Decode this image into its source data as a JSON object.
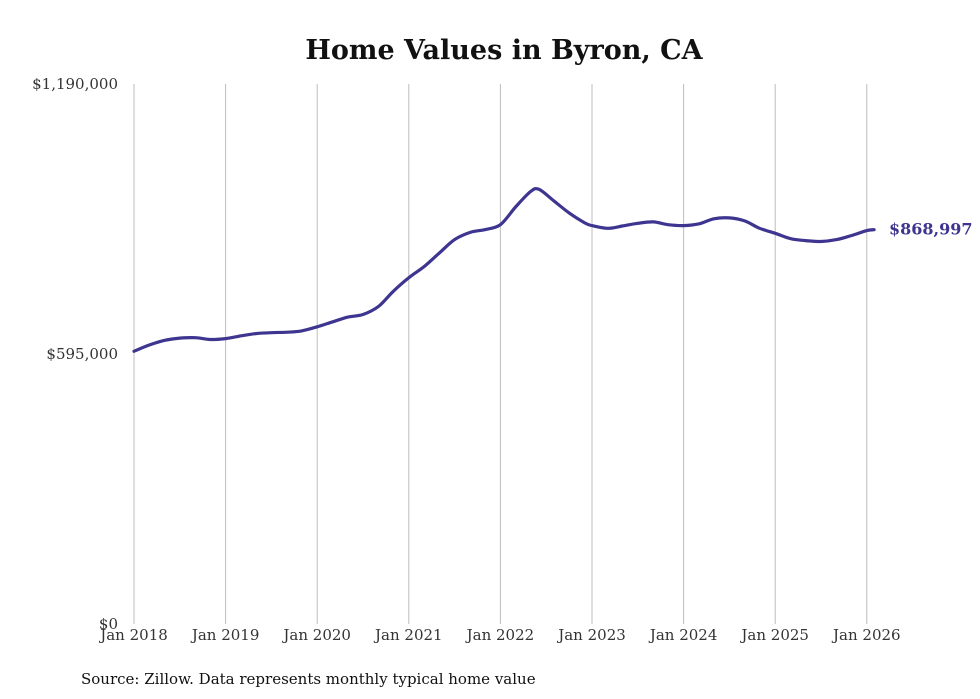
{
  "chart_data": {
    "type": "line",
    "title": "Home Values in Byron, CA",
    "xlabel": "",
    "ylabel": "",
    "ylim": [
      0,
      1190000
    ],
    "yticks": [
      {
        "value": 0,
        "label": "$0"
      },
      {
        "value": 595000,
        "label": "$595,000"
      },
      {
        "value": 1190000,
        "label": "$1,190,000"
      }
    ],
    "xticks": [
      {
        "year": 2018,
        "label": "Jan 2018"
      },
      {
        "year": 2019,
        "label": "Jan 2019"
      },
      {
        "year": 2020,
        "label": "Jan 2020"
      },
      {
        "year": 2021,
        "label": "Jan 2021"
      },
      {
        "year": 2022,
        "label": "Jan 2022"
      },
      {
        "year": 2023,
        "label": "Jan 2023"
      },
      {
        "year": 2024,
        "label": "Jan 2024"
      },
      {
        "year": 2025,
        "label": "Jan 2025"
      },
      {
        "year": 2026,
        "label": "Jan 2026"
      }
    ],
    "grid": "vertical",
    "series": [
      {
        "name": "Typical home value",
        "color": "#3d3590",
        "points": [
          [
            2018.0,
            601000
          ],
          [
            2018.17,
            615000
          ],
          [
            2018.33,
            625000
          ],
          [
            2018.5,
            630000
          ],
          [
            2018.67,
            631000
          ],
          [
            2018.83,
            627000
          ],
          [
            2019.0,
            629000
          ],
          [
            2019.17,
            635000
          ],
          [
            2019.33,
            640000
          ],
          [
            2019.5,
            642000
          ],
          [
            2019.67,
            643000
          ],
          [
            2019.83,
            646000
          ],
          [
            2020.0,
            655000
          ],
          [
            2020.17,
            666000
          ],
          [
            2020.33,
            676000
          ],
          [
            2020.5,
            682000
          ],
          [
            2020.67,
            700000
          ],
          [
            2020.83,
            733000
          ],
          [
            2021.0,
            763000
          ],
          [
            2021.17,
            788000
          ],
          [
            2021.33,
            817000
          ],
          [
            2021.5,
            847000
          ],
          [
            2021.67,
            863000
          ],
          [
            2021.83,
            869000
          ],
          [
            2022.0,
            880000
          ],
          [
            2022.17,
            920000
          ],
          [
            2022.33,
            953000
          ],
          [
            2022.42,
            958000
          ],
          [
            2022.58,
            933000
          ],
          [
            2022.75,
            906000
          ],
          [
            2022.92,
            884000
          ],
          [
            2023.0,
            878000
          ],
          [
            2023.17,
            872000
          ],
          [
            2023.33,
            877000
          ],
          [
            2023.5,
            883000
          ],
          [
            2023.67,
            886000
          ],
          [
            2023.83,
            880000
          ],
          [
            2024.0,
            878000
          ],
          [
            2024.17,
            882000
          ],
          [
            2024.33,
            893000
          ],
          [
            2024.5,
            895000
          ],
          [
            2024.67,
            888000
          ],
          [
            2024.83,
            872000
          ],
          [
            2025.0,
            861000
          ],
          [
            2025.17,
            849000
          ],
          [
            2025.33,
            845000
          ],
          [
            2025.5,
            843000
          ],
          [
            2025.67,
            847000
          ],
          [
            2025.83,
            856000
          ],
          [
            2026.0,
            867000
          ],
          [
            2026.08,
            868997
          ]
        ],
        "end_label": "$868,997"
      }
    ]
  },
  "source_note": "Source: Zillow. Data represents monthly typical home value"
}
